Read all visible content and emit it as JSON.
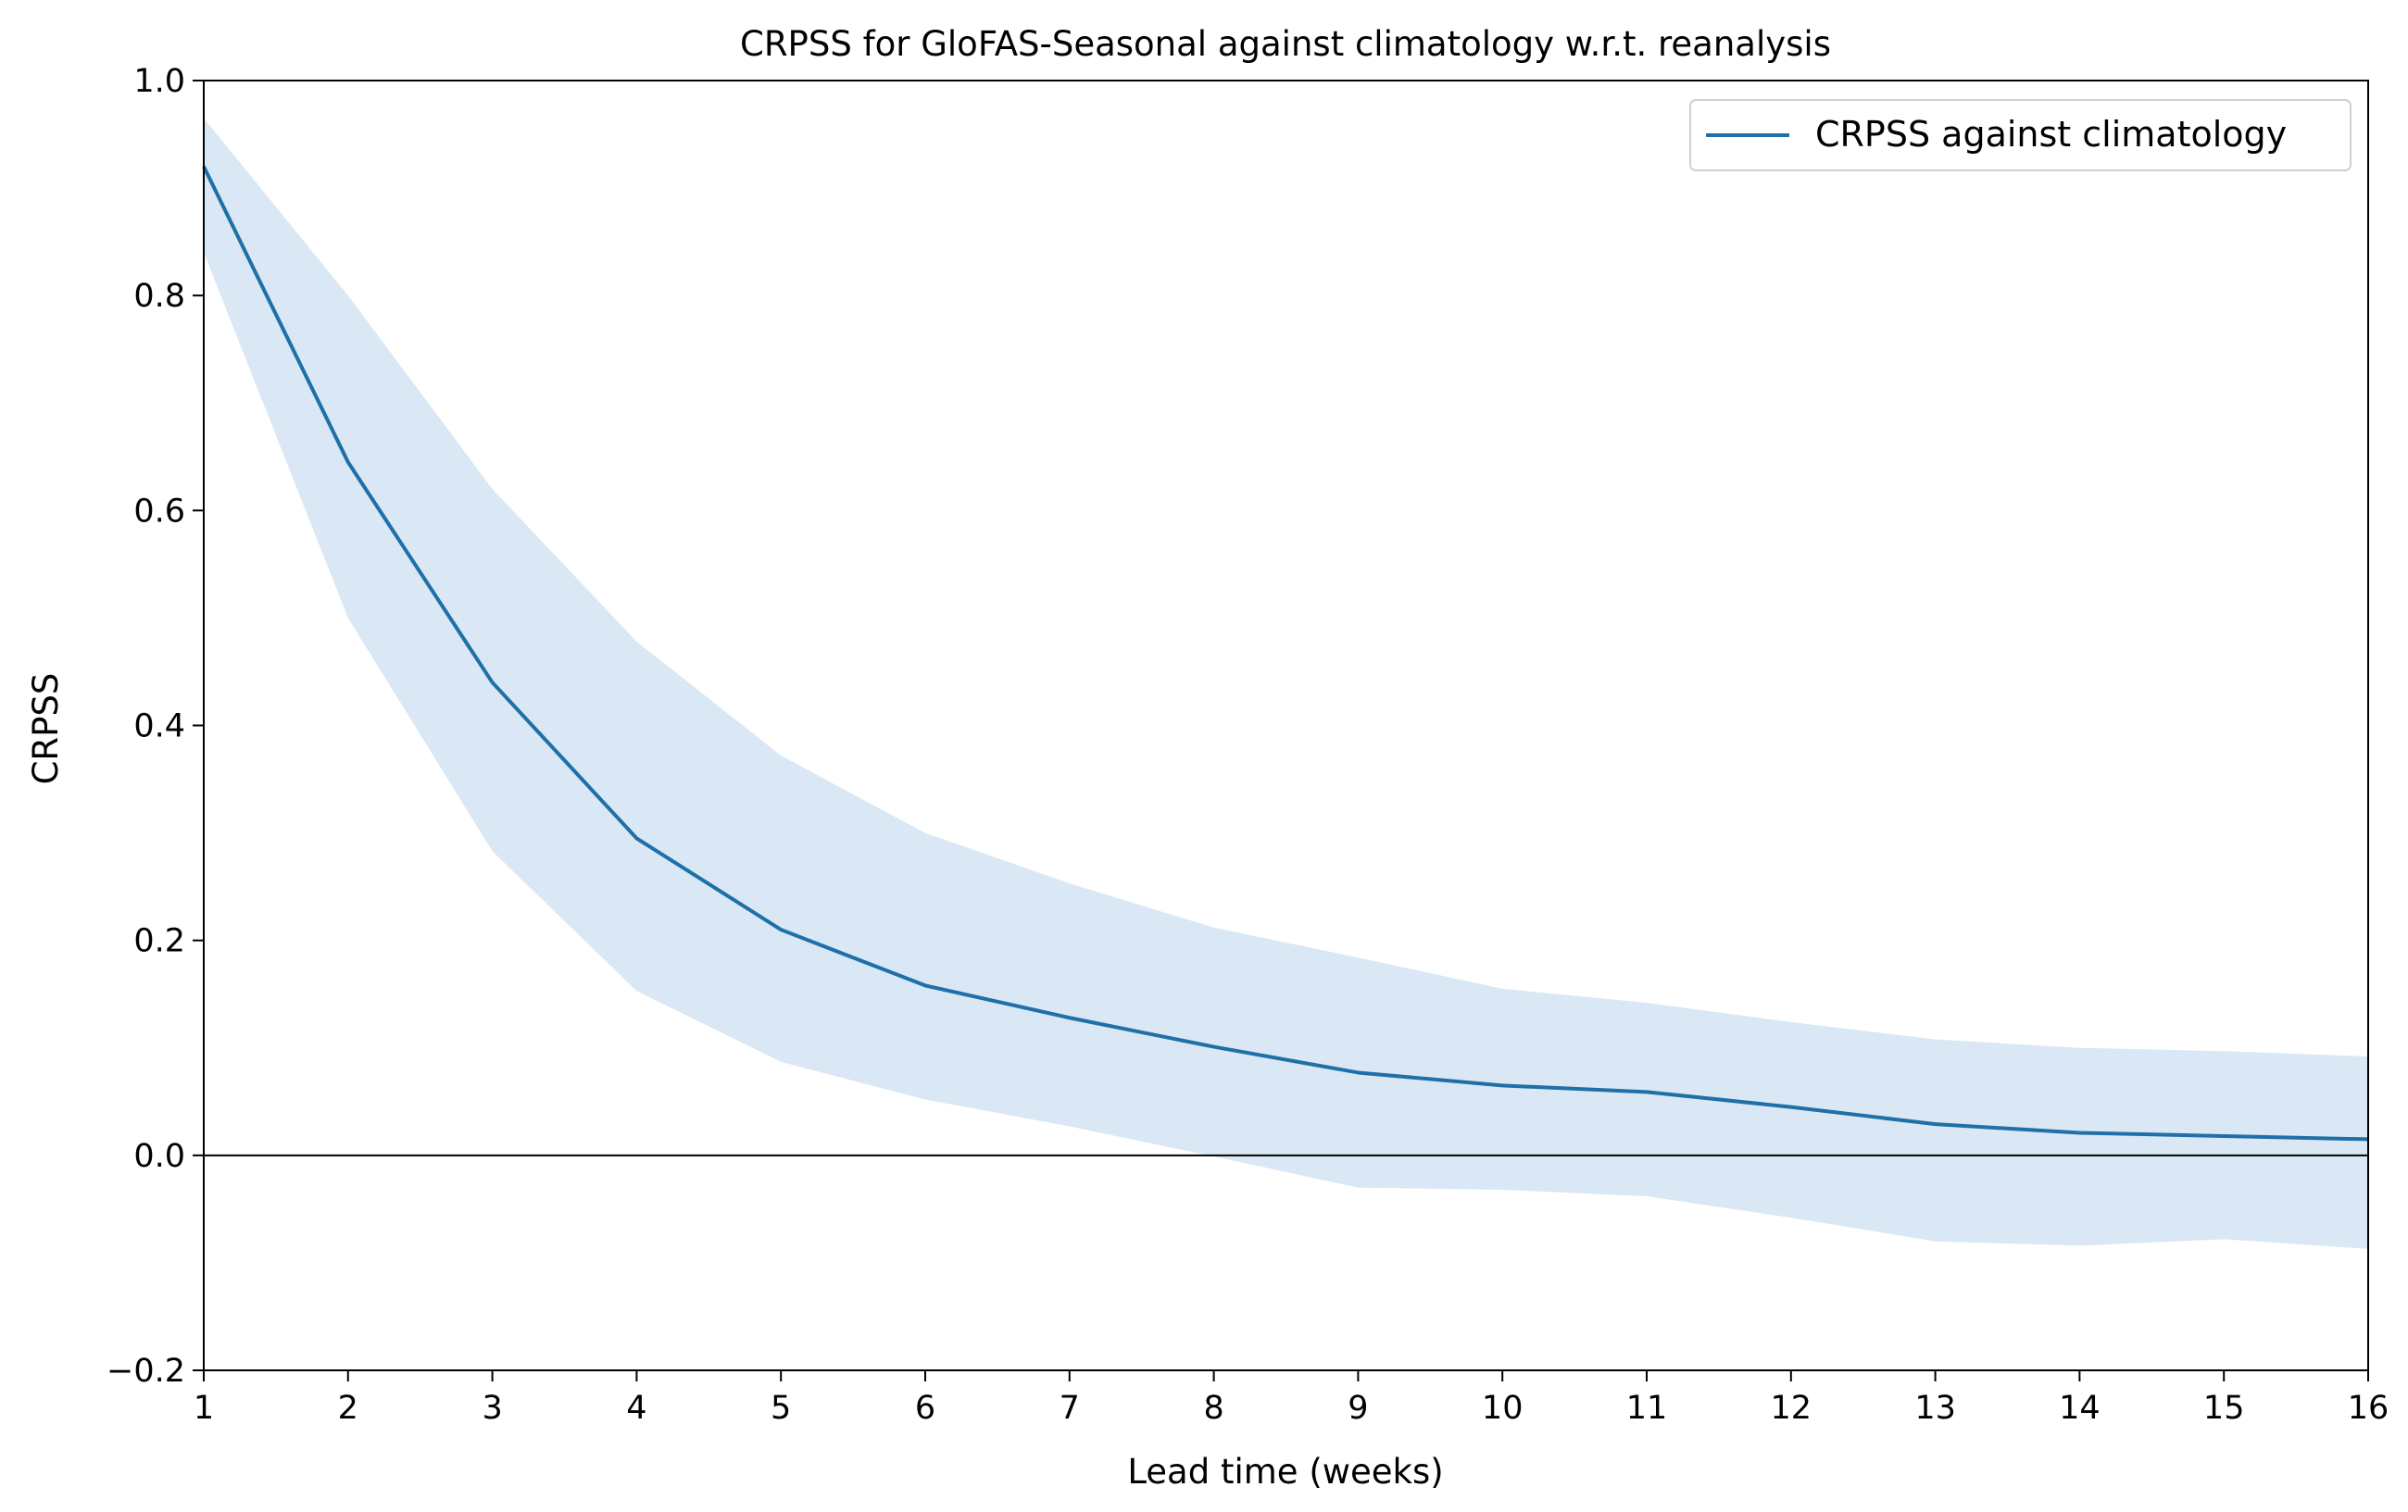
{
  "chart_data": {
    "type": "line",
    "title": "CRPSS for GloFAS-Seasonal against climatology w.r.t. reanalysis",
    "xlabel": "Lead time (weeks)",
    "ylabel": "CRPSS",
    "xlim": [
      1,
      16
    ],
    "ylim": [
      -0.2,
      1.0
    ],
    "x_ticks": [
      1,
      2,
      3,
      4,
      5,
      6,
      7,
      8,
      9,
      10,
      11,
      12,
      13,
      14,
      15,
      16
    ],
    "y_ticks": [
      -0.2,
      0.0,
      0.2,
      0.4,
      0.6,
      0.8,
      1.0
    ],
    "y_tick_labels": [
      "−0.2",
      "0.0",
      "0.2",
      "0.4",
      "0.6",
      "0.8",
      "1.0"
    ],
    "grid": false,
    "legend_position": "top-right",
    "reference_line_y": 0.0,
    "x": [
      1,
      2,
      3,
      4,
      5,
      6,
      7,
      8,
      9,
      10,
      11,
      12,
      13,
      14,
      15,
      16
    ],
    "series": [
      {
        "name": "CRPSS against climatology",
        "color": "#1f6fa8",
        "values": [
          0.92,
          0.645,
          0.44,
          0.295,
          0.21,
          0.158,
          0.128,
          0.101,
          0.077,
          0.065,
          0.059,
          0.045,
          0.029,
          0.021,
          0.018,
          0.015
        ]
      }
    ],
    "band": {
      "color": "#d9e8f4",
      "lower": [
        0.84,
        0.5,
        0.283,
        0.153,
        0.087,
        0.052,
        0.027,
        -0.001,
        -0.03,
        -0.032,
        -0.038,
        -0.058,
        -0.08,
        -0.084,
        -0.078,
        -0.087
      ],
      "upper": [
        0.965,
        0.8,
        0.62,
        0.478,
        0.372,
        0.3,
        0.253,
        0.212,
        0.184,
        0.155,
        0.142,
        0.124,
        0.108,
        0.1,
        0.097,
        0.092
      ]
    }
  }
}
